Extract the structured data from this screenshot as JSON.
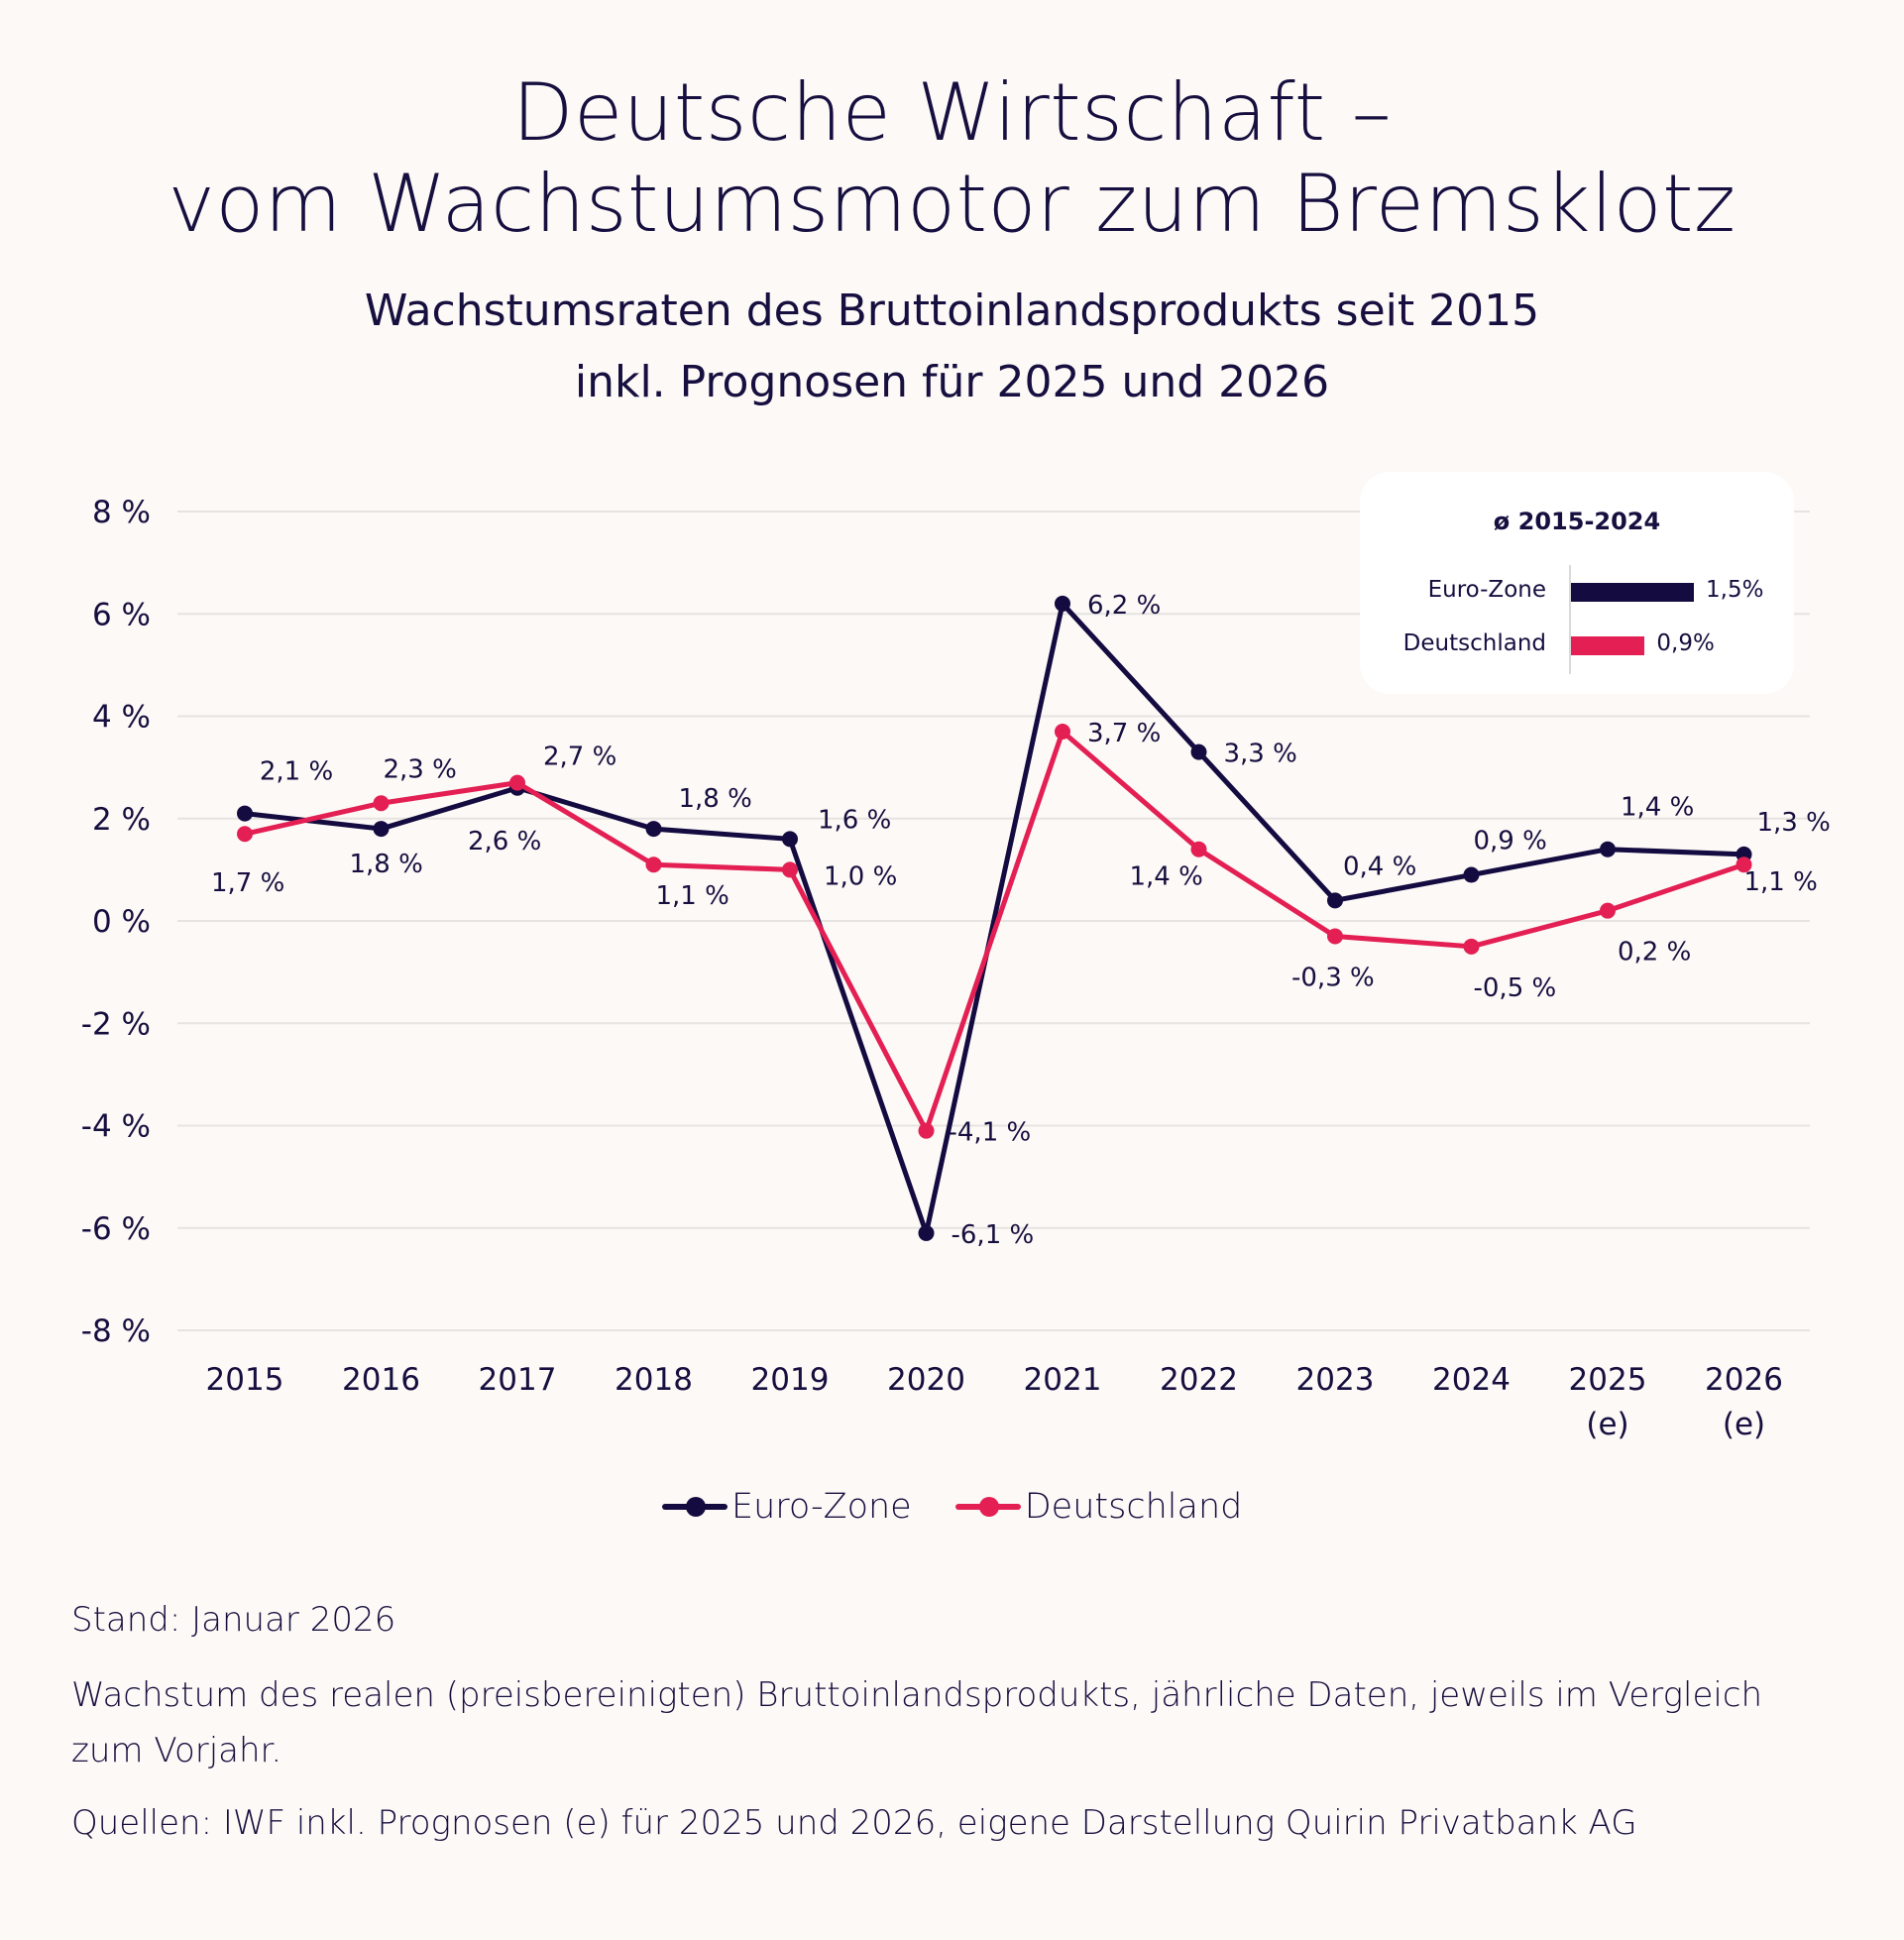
{
  "header": {
    "title_line1": "Deutsche Wirtschaft –",
    "title_line2": "vom Wachstumsmotor zum Bremsklotz",
    "subtitle_line1": "Wachstumsraten des Bruttoinlandsprodukts seit 2015",
    "subtitle_line2": "inkl. Prognosen für 2025 und 2026"
  },
  "colors": {
    "euro_zone": "#140b40",
    "deutschland": "#e31f53",
    "text": "#160f3f",
    "grid": "#e6e3e0",
    "background": "#fcf9f6"
  },
  "chart_data": {
    "type": "line",
    "title": "Wachstumsraten des Bruttoinlandsprodukts seit 2015 inkl. Prognosen für 2025 und 2026",
    "xlabel": "",
    "ylabel": "",
    "ylim": [
      -8,
      8
    ],
    "yticks": [
      8,
      6,
      4,
      2,
      0,
      -2,
      -4,
      -6,
      -8
    ],
    "ytick_labels": [
      "8 %",
      "6 %",
      "4 %",
      "2 %",
      "0 %",
      "-2 %",
      "-4 %",
      "-6 %",
      "-8 %"
    ],
    "grid": true,
    "legend_position": "bottom-center",
    "categories": [
      "2015",
      "2016",
      "2017",
      "2018",
      "2019",
      "2020",
      "2021",
      "2022",
      "2023",
      "2024",
      "2025",
      "2026"
    ],
    "category_sublabels": [
      "",
      "",
      "",
      "",
      "",
      "",
      "",
      "",
      "",
      "",
      "(e)",
      "(e)"
    ],
    "series": [
      {
        "name": "Euro-Zone",
        "values": [
          2.1,
          1.8,
          2.6,
          1.8,
          1.6,
          -6.1,
          6.2,
          3.3,
          0.4,
          0.9,
          1.4,
          1.3
        ],
        "labels": [
          "2,1 %",
          "1,8 %",
          "2,6 %",
          "1,8 %",
          "1,6 %",
          "-6,1 %",
          "6,2 %",
          "3,3 %",
          "0,4 %",
          "0,9 %",
          "1,4 %",
          "1,3 %"
        ]
      },
      {
        "name": "Deutschland",
        "values": [
          1.7,
          2.3,
          2.7,
          1.1,
          1.0,
          -4.1,
          3.7,
          1.4,
          -0.3,
          -0.5,
          0.2,
          1.1
        ],
        "labels": [
          "1,7 %",
          "2,3 %",
          "2,7 %",
          "1,1 %",
          "1,0 %",
          "-4,1 %",
          "3,7 %",
          "1,4 %",
          "-0,3 %",
          "-0,5 %",
          "0,2 %",
          "1,1 %"
        ]
      }
    ],
    "inset": {
      "type": "bar",
      "title": "ø 2015-2024",
      "categories": [
        "Euro-Zone",
        "Deutschland"
      ],
      "values": [
        1.5,
        0.9
      ],
      "labels": [
        "1,5%",
        "0,9%"
      ]
    }
  },
  "legend": {
    "items": [
      {
        "label": "Euro-Zone"
      },
      {
        "label": "Deutschland"
      }
    ]
  },
  "footer": {
    "stand": "Stand: Januar 2026",
    "note": "Wachstum des realen (preisbereinigten) Bruttoinlandsprodukts, jährliche Daten, jeweils im Vergleich zum Vorjahr.",
    "sources": "Quellen: IWF inkl. Prognosen (e) für 2025 und 2026, eigene Darstellung Quirin Privatbank AG"
  }
}
